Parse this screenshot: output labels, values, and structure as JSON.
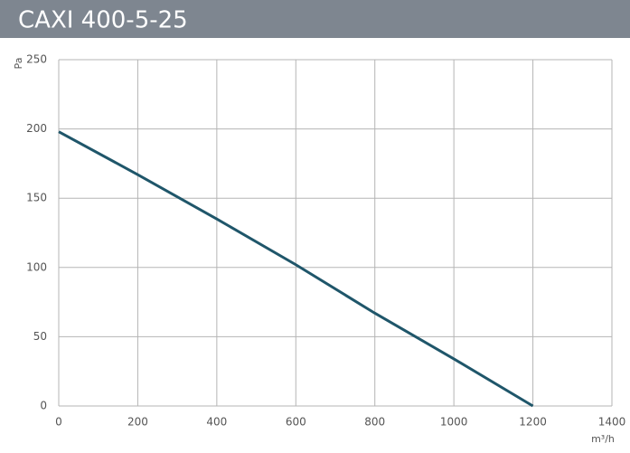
{
  "chart_data": {
    "type": "line",
    "title": "CAXI 400-5-25",
    "y_label": "Pa",
    "x_label": "m³/h",
    "x": [
      0,
      200,
      400,
      600,
      800,
      1000,
      1200
    ],
    "series": [
      {
        "name": null,
        "color": "#1f566a",
        "values": [
          198,
          167,
          135,
          102,
          67,
          34,
          0
        ]
      }
    ],
    "xlim": [
      0,
      1400
    ],
    "xticks": [
      0,
      200,
      400,
      600,
      800,
      1000,
      1200,
      1400
    ],
    "ylim": [
      0,
      250
    ],
    "yticks": [
      0,
      50,
      100,
      150,
      200,
      250
    ],
    "grid": true
  }
}
